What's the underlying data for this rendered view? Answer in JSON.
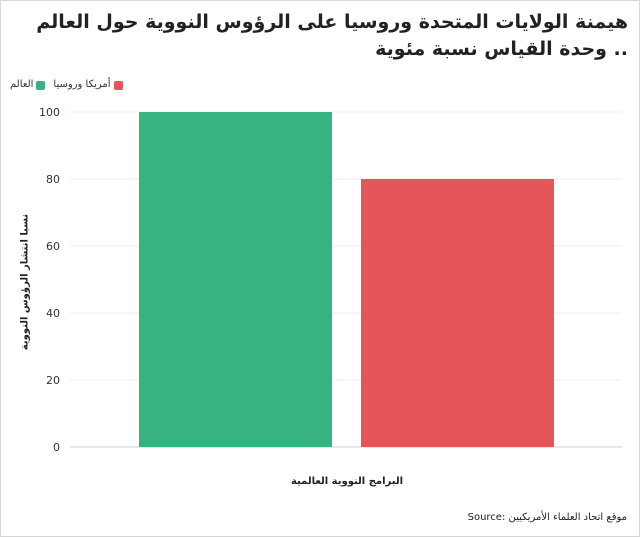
{
  "chart_data": {
    "type": "bar",
    "title": "هيمنة الولايات المتحدة وروسيا على الرؤوس النووية حول العالم .. وحدة القياس نسبة مئوية",
    "ylabel": "نسبا انتشار الرؤوس النووية",
    "xlabel": "البرامج النووية العالمية",
    "ylim": [
      0,
      100
    ],
    "yticks": [
      0,
      20,
      40,
      60,
      80,
      100
    ],
    "grid": true,
    "legend_position": "top-left",
    "series": [
      {
        "name": "العالم",
        "value": 100,
        "color": "#36b37e"
      },
      {
        "name": "أمريكا وروسيا",
        "value": 80,
        "color": "#e5565b"
      }
    ],
    "source": "موقع اتحاد العلماء الأمريكيين :Source"
  }
}
